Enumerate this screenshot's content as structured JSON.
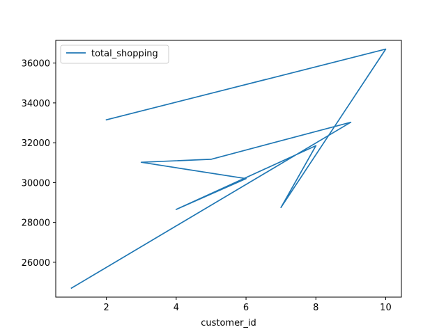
{
  "chart_data": {
    "type": "line",
    "title": "",
    "xlabel": "customer_id",
    "ylabel": "",
    "xlim": [
      0.55,
      10.45
    ],
    "ylim": [
      24250,
      37140
    ],
    "x_ticks": [
      2,
      4,
      6,
      8,
      10
    ],
    "y_ticks": [
      26000,
      28000,
      30000,
      32000,
      34000,
      36000
    ],
    "grid": false,
    "legend_position": "upper left",
    "series": [
      {
        "name": "total_shopping",
        "color": "#1f77b4",
        "points": [
          {
            "x": 2,
            "y": 33150
          },
          {
            "x": 10,
            "y": 36700
          },
          {
            "x": 7,
            "y": 28750
          },
          {
            "x": 8,
            "y": 31850
          },
          {
            "x": 4,
            "y": 28650
          },
          {
            "x": 6,
            "y": 30200
          },
          {
            "x": 3,
            "y": 31020
          },
          {
            "x": 5,
            "y": 31170
          },
          {
            "x": 9,
            "y": 33030
          },
          {
            "x": 1,
            "y": 24700
          }
        ]
      }
    ]
  }
}
